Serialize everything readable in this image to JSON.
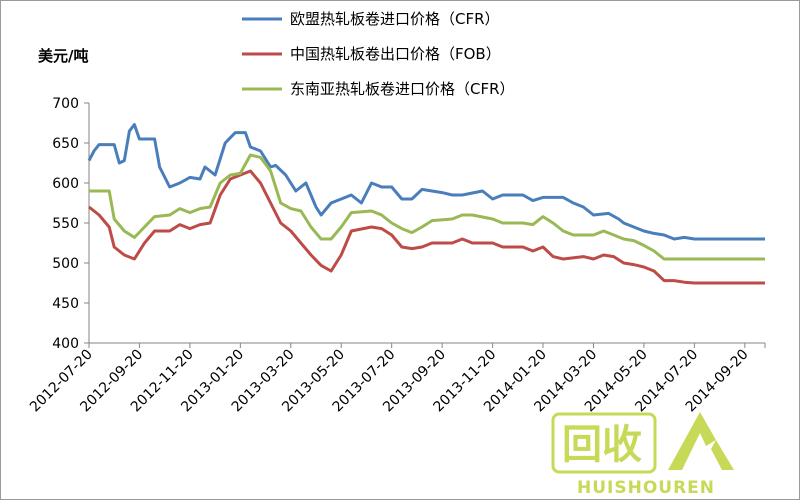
{
  "chart_data": {
    "type": "line",
    "ylabel": "美元/吨",
    "ylim": [
      400,
      700
    ],
    "yticks": [
      400,
      450,
      500,
      550,
      600,
      650,
      700
    ],
    "x_tick_labels": [
      "2012-07-20",
      "2012-09-20",
      "2012-11-20",
      "2013-01-20",
      "2013-03-20",
      "2013-05-20",
      "2013-07-20",
      "2013-09-20",
      "2013-11-20",
      "2014-01-20",
      "2014-03-20",
      "2014-05-20",
      "2014-07-20",
      "2014-09-20"
    ],
    "x_count": 14,
    "x_end": 13.4,
    "grid": false,
    "legend": "top",
    "series": [
      {
        "name": "欧盟热轧板卷进口价格（CFR）",
        "color": "#4a7ebb",
        "points": [
          [
            0,
            628
          ],
          [
            0.1,
            640
          ],
          [
            0.2,
            648
          ],
          [
            0.5,
            648
          ],
          [
            0.6,
            625
          ],
          [
            0.7,
            628
          ],
          [
            0.8,
            665
          ],
          [
            0.9,
            673
          ],
          [
            1.0,
            655
          ],
          [
            1.3,
            655
          ],
          [
            1.4,
            620
          ],
          [
            1.6,
            595
          ],
          [
            1.8,
            600
          ],
          [
            2.0,
            607
          ],
          [
            2.2,
            605
          ],
          [
            2.3,
            620
          ],
          [
            2.5,
            610
          ],
          [
            2.7,
            650
          ],
          [
            2.9,
            663
          ],
          [
            3.1,
            663
          ],
          [
            3.2,
            645
          ],
          [
            3.4,
            640
          ],
          [
            3.6,
            620
          ],
          [
            3.7,
            622
          ],
          [
            3.9,
            610
          ],
          [
            4.1,
            590
          ],
          [
            4.3,
            600
          ],
          [
            4.5,
            570
          ],
          [
            4.6,
            560
          ],
          [
            4.8,
            575
          ],
          [
            5.0,
            580
          ],
          [
            5.2,
            585
          ],
          [
            5.4,
            575
          ],
          [
            5.6,
            600
          ],
          [
            5.8,
            595
          ],
          [
            6.0,
            595
          ],
          [
            6.2,
            580
          ],
          [
            6.4,
            580
          ],
          [
            6.6,
            592
          ],
          [
            6.8,
            590
          ],
          [
            7.0,
            588
          ],
          [
            7.2,
            585
          ],
          [
            7.4,
            585
          ],
          [
            7.8,
            590
          ],
          [
            8.0,
            580
          ],
          [
            8.2,
            585
          ],
          [
            8.6,
            585
          ],
          [
            8.8,
            578
          ],
          [
            9.0,
            582
          ],
          [
            9.4,
            582
          ],
          [
            9.6,
            575
          ],
          [
            9.8,
            570
          ],
          [
            10.0,
            560
          ],
          [
            10.3,
            562
          ],
          [
            10.5,
            555
          ],
          [
            10.6,
            550
          ],
          [
            10.8,
            545
          ],
          [
            11.0,
            540
          ],
          [
            11.2,
            537
          ],
          [
            11.4,
            535
          ],
          [
            11.6,
            530
          ],
          [
            11.8,
            532
          ],
          [
            12.0,
            530
          ],
          [
            13.4,
            530
          ]
        ]
      },
      {
        "name": "中国热轧板卷出口价格（FOB）",
        "color": "#be4b48",
        "points": [
          [
            0,
            570
          ],
          [
            0.2,
            560
          ],
          [
            0.4,
            545
          ],
          [
            0.5,
            520
          ],
          [
            0.7,
            510
          ],
          [
            0.9,
            505
          ],
          [
            1.1,
            525
          ],
          [
            1.3,
            540
          ],
          [
            1.6,
            540
          ],
          [
            1.8,
            548
          ],
          [
            2.0,
            543
          ],
          [
            2.2,
            548
          ],
          [
            2.4,
            550
          ],
          [
            2.6,
            585
          ],
          [
            2.8,
            605
          ],
          [
            3.0,
            610
          ],
          [
            3.2,
            615
          ],
          [
            3.4,
            600
          ],
          [
            3.6,
            575
          ],
          [
            3.8,
            550
          ],
          [
            4.0,
            540
          ],
          [
            4.2,
            525
          ],
          [
            4.4,
            510
          ],
          [
            4.6,
            497
          ],
          [
            4.8,
            490
          ],
          [
            5.0,
            510
          ],
          [
            5.2,
            540
          ],
          [
            5.6,
            545
          ],
          [
            5.8,
            543
          ],
          [
            6.0,
            535
          ],
          [
            6.2,
            520
          ],
          [
            6.4,
            518
          ],
          [
            6.6,
            520
          ],
          [
            6.8,
            525
          ],
          [
            7.2,
            525
          ],
          [
            7.4,
            530
          ],
          [
            7.6,
            525
          ],
          [
            8.0,
            525
          ],
          [
            8.2,
            520
          ],
          [
            8.6,
            520
          ],
          [
            8.8,
            515
          ],
          [
            9.0,
            520
          ],
          [
            9.2,
            508
          ],
          [
            9.4,
            505
          ],
          [
            9.8,
            508
          ],
          [
            10.0,
            505
          ],
          [
            10.2,
            510
          ],
          [
            10.4,
            508
          ],
          [
            10.6,
            500
          ],
          [
            10.8,
            498
          ],
          [
            11.0,
            495
          ],
          [
            11.2,
            490
          ],
          [
            11.4,
            478
          ],
          [
            11.6,
            478
          ],
          [
            11.8,
            476
          ],
          [
            12.0,
            475
          ],
          [
            13.4,
            475
          ]
        ]
      },
      {
        "name": "东南亚热轧板卷进口价格（CFR）",
        "color": "#98b954",
        "points": [
          [
            0,
            590
          ],
          [
            0.4,
            590
          ],
          [
            0.5,
            555
          ],
          [
            0.7,
            540
          ],
          [
            0.9,
            532
          ],
          [
            1.1,
            545
          ],
          [
            1.3,
            558
          ],
          [
            1.6,
            560
          ],
          [
            1.8,
            568
          ],
          [
            2.0,
            563
          ],
          [
            2.2,
            568
          ],
          [
            2.4,
            570
          ],
          [
            2.6,
            600
          ],
          [
            2.8,
            610
          ],
          [
            3.0,
            612
          ],
          [
            3.2,
            635
          ],
          [
            3.4,
            632
          ],
          [
            3.6,
            615
          ],
          [
            3.8,
            575
          ],
          [
            4.0,
            568
          ],
          [
            4.2,
            565
          ],
          [
            4.4,
            545
          ],
          [
            4.6,
            530
          ],
          [
            4.8,
            530
          ],
          [
            5.0,
            545
          ],
          [
            5.2,
            563
          ],
          [
            5.6,
            565
          ],
          [
            5.8,
            560
          ],
          [
            6.0,
            550
          ],
          [
            6.2,
            543
          ],
          [
            6.4,
            538
          ],
          [
            6.6,
            545
          ],
          [
            6.8,
            553
          ],
          [
            7.2,
            555
          ],
          [
            7.4,
            560
          ],
          [
            7.6,
            560
          ],
          [
            8.0,
            555
          ],
          [
            8.2,
            550
          ],
          [
            8.6,
            550
          ],
          [
            8.8,
            548
          ],
          [
            9.0,
            558
          ],
          [
            9.2,
            550
          ],
          [
            9.4,
            540
          ],
          [
            9.6,
            535
          ],
          [
            10.0,
            535
          ],
          [
            10.2,
            540
          ],
          [
            10.4,
            535
          ],
          [
            10.6,
            530
          ],
          [
            10.8,
            528
          ],
          [
            11.0,
            522
          ],
          [
            11.2,
            515
          ],
          [
            11.4,
            505
          ],
          [
            11.6,
            505
          ],
          [
            12.0,
            505
          ],
          [
            13.4,
            505
          ]
        ]
      }
    ]
  },
  "watermark": {
    "logo_text": "回收",
    "subtext": "HUISHOUREN",
    "color": "#c7d957"
  }
}
